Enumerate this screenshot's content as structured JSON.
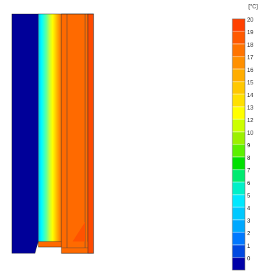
{
  "legend": {
    "unit": "[°C]",
    "min": 0,
    "max": 20,
    "ticks": [
      "20",
      "19",
      "18",
      "17",
      "16",
      "15",
      "14",
      "13",
      "12",
      "10",
      "9",
      "8",
      "7",
      "6",
      "5",
      "4",
      "3",
      "2",
      "1",
      "0"
    ],
    "colors": [
      "#ff4000",
      "#ff5a00",
      "#ff7400",
      "#ff9000",
      "#ffad00",
      "#ffc800",
      "#ffe000",
      "#ffff00",
      "#ccff00",
      "#9cf000",
      "#5cf000",
      "#00e000",
      "#00ea70",
      "#00f0c8",
      "#00e8ff",
      "#00c8ff",
      "#00a8ff",
      "#0078ff",
      "#0048e0",
      "#0000a8"
    ]
  },
  "section": {
    "wall_color": "#000099",
    "plaster_color": "#ff6a00",
    "inner_color": "#ff4a00",
    "insulation_gradient": [
      "#00ffff",
      "#00d8ff",
      "#66ff99",
      "#ccff33",
      "#ffff00",
      "#ffcc00",
      "#ff9900",
      "#ff6a00"
    ]
  }
}
